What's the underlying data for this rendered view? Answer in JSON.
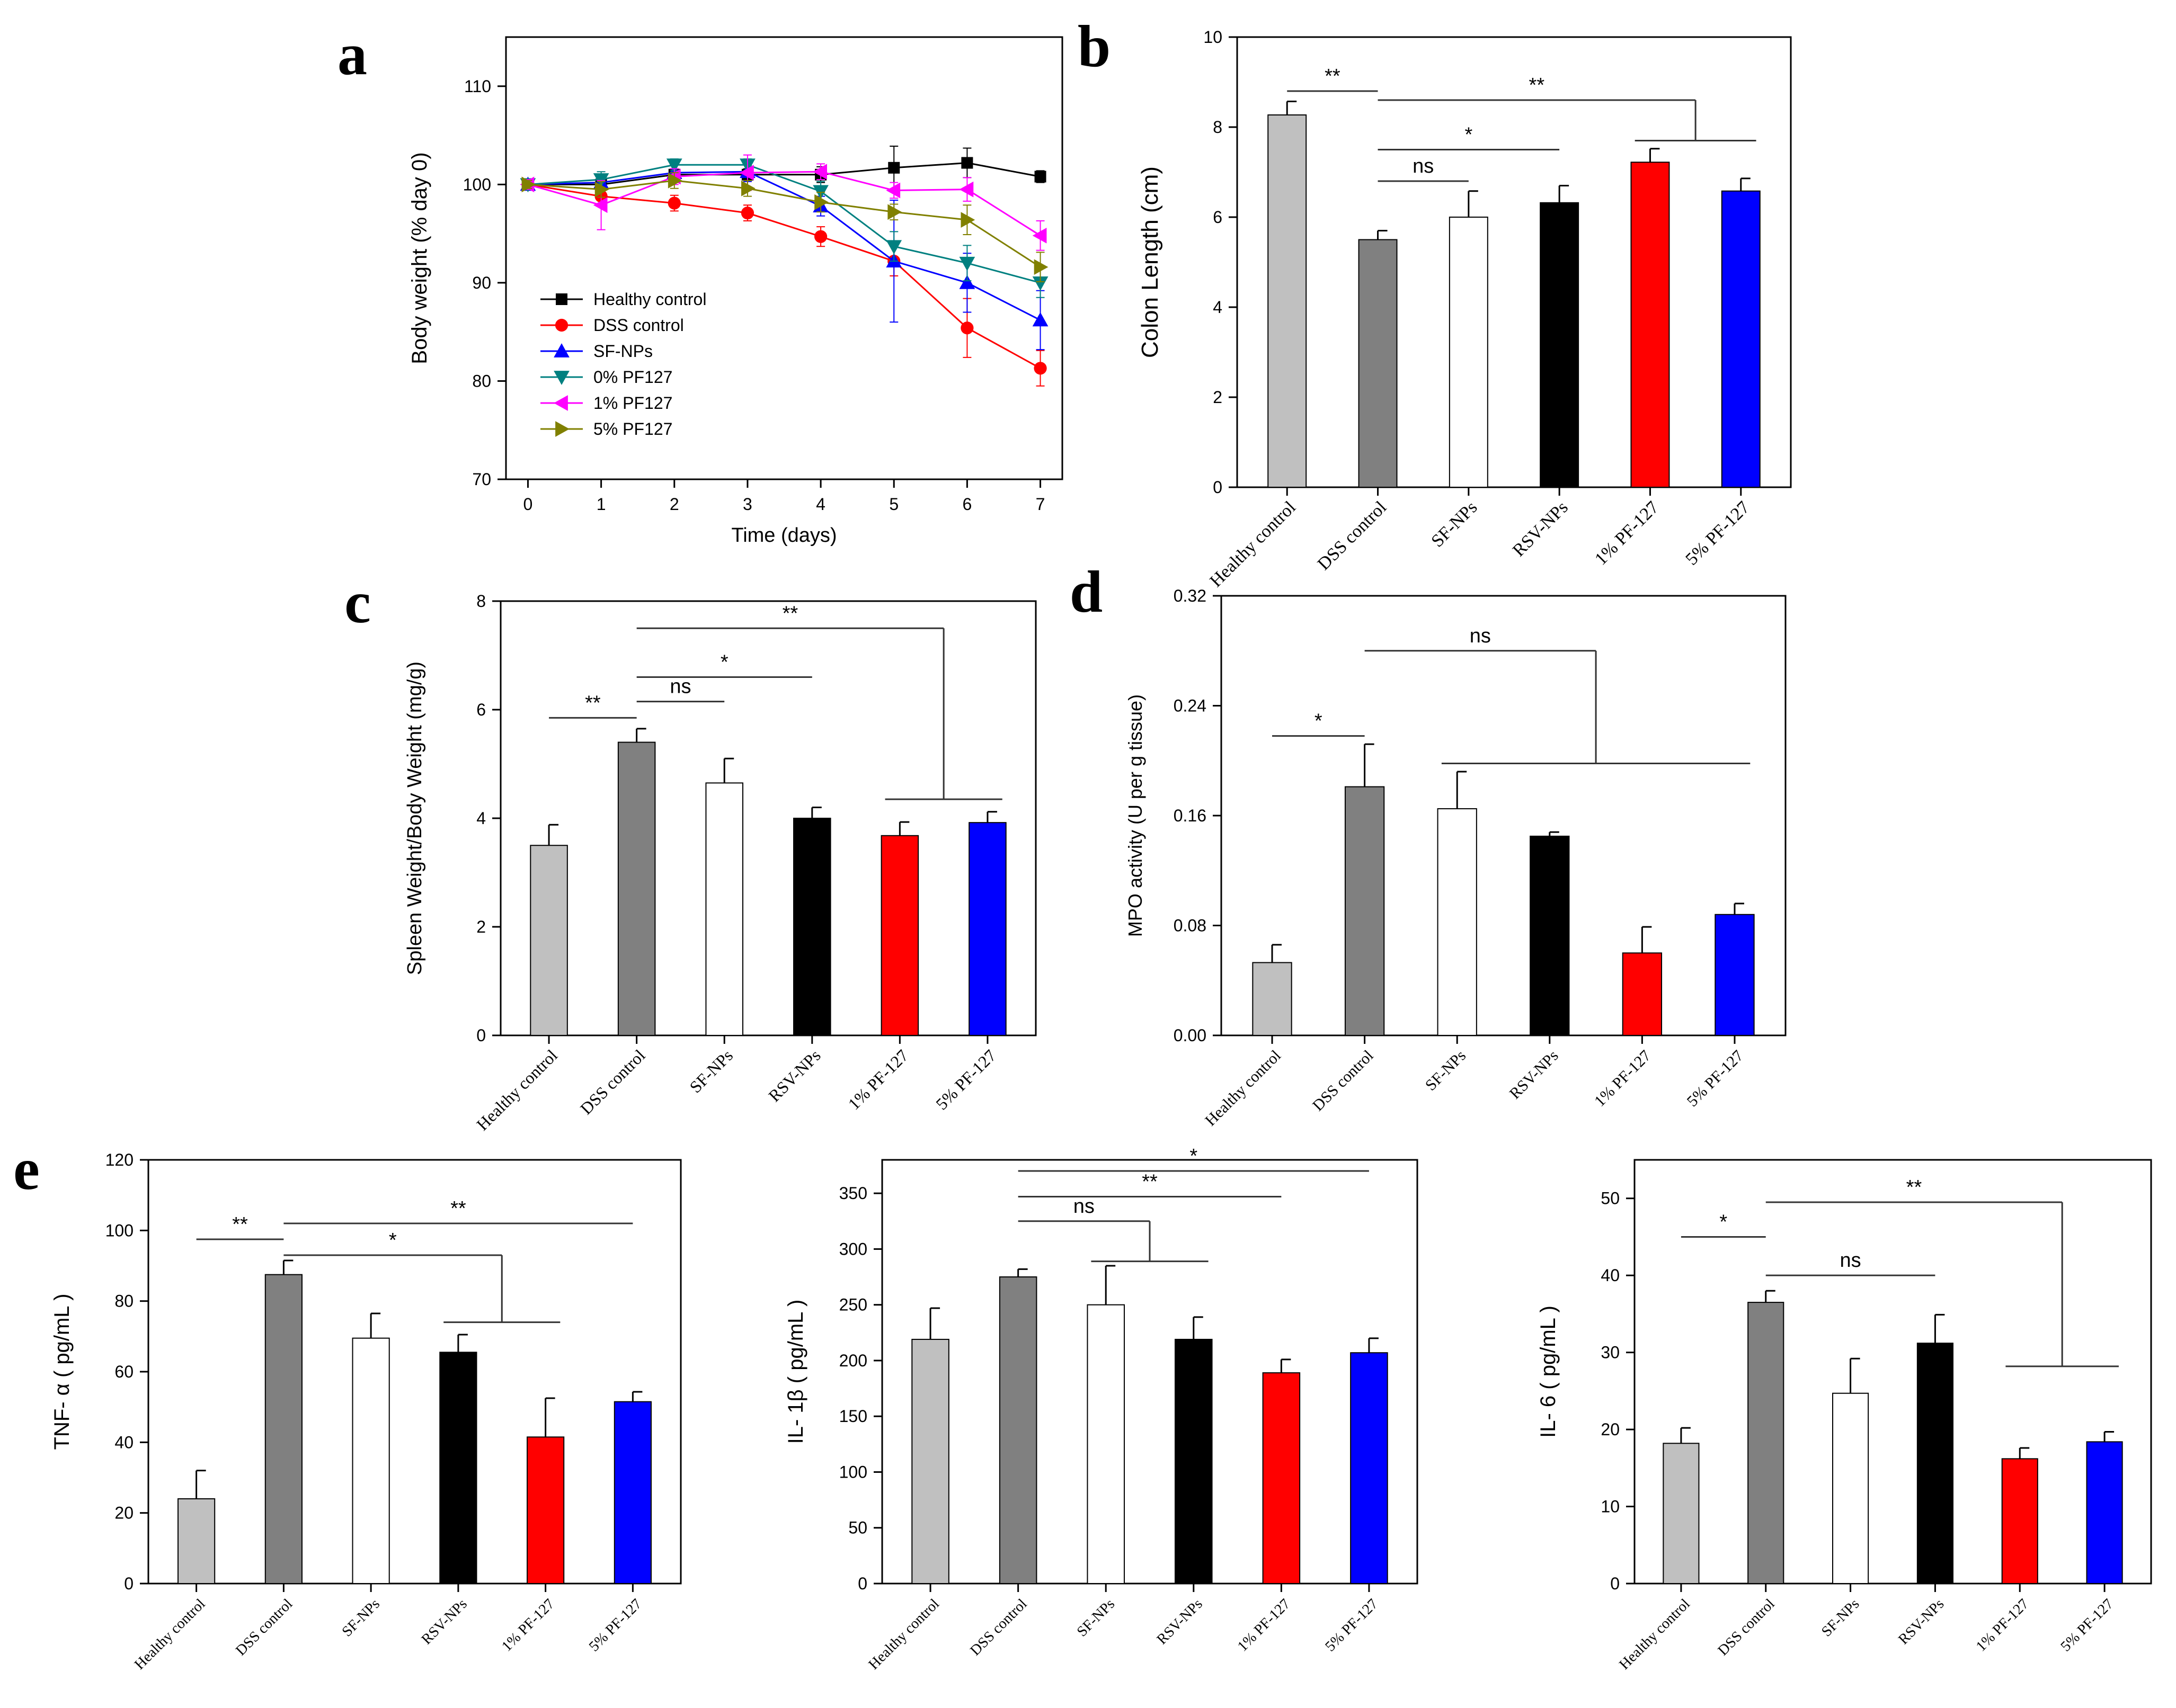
{
  "colors": {
    "healthy": "#c0c0c0",
    "dss": "#808080",
    "sfnp": "#ffffff",
    "rsvnp": "#000000",
    "pf1": "#ff0000",
    "pf5": "#0000ff",
    "line_healthy": "#000000",
    "line_dss": "#ff0000",
    "line_sfnp": "#0000ff",
    "line_pf0": "#008080",
    "line_pf1": "#ff00ff",
    "line_pf5": "#808000"
  },
  "chart_data": [
    {
      "id": "a",
      "type": "line",
      "panel_label": "a",
      "xlabel": "Time (days)",
      "ylabel": "Body weight (% day 0)",
      "x": [
        0,
        1,
        2,
        3,
        4,
        5,
        6,
        7
      ],
      "xticks": [
        "0",
        "1",
        "2",
        "3",
        "4",
        "5",
        "6",
        "7"
      ],
      "xlim": [
        -0.3,
        7.3
      ],
      "ylim": [
        70,
        115
      ],
      "yticks": [
        "70",
        "80",
        "90",
        "100",
        "110"
      ],
      "legend_position": "center-left",
      "series": [
        {
          "name": "Healthy control",
          "marker": "square",
          "color": "#000000",
          "values": [
            100,
            100,
            101,
            101,
            101,
            101.7,
            102.2,
            100.8
          ],
          "errors": [
            0.5,
            0.6,
            0.6,
            0.6,
            0.8,
            2.2,
            1.5,
            0.6
          ]
        },
        {
          "name": "DSS control",
          "marker": "circle",
          "color": "#ff0000",
          "values": [
            100,
            98.8,
            98.1,
            97.1,
            94.7,
            92.2,
            85.4,
            81.3
          ],
          "errors": [
            0.4,
            0.8,
            0.8,
            0.8,
            1.0,
            1.5,
            3.0,
            1.8
          ]
        },
        {
          "name": "SF-NPs",
          "marker": "triangle-up",
          "color": "#0000ff",
          "values": [
            100,
            100.2,
            101.2,
            101.3,
            97.8,
            92.2,
            90.0,
            86.2
          ],
          "errors": [
            0.5,
            0.8,
            0.8,
            1.0,
            1.0,
            6.2,
            3.0,
            3.0
          ]
        },
        {
          "name": "0% PF127",
          "marker": "triangle-down",
          "color": "#008080",
          "values": [
            100,
            100.5,
            102,
            102,
            99.3,
            93.7,
            92.0,
            90.0
          ],
          "errors": [
            0.5,
            0.8,
            0.6,
            0.6,
            1.0,
            1.5,
            1.8,
            1.5
          ]
        },
        {
          "name": "1% PF127",
          "marker": "triangle-left",
          "color": "#ff00ff",
          "values": [
            100,
            97.9,
            100.8,
            101.2,
            101.3,
            99.4,
            99.5,
            94.8
          ],
          "errors": [
            0.5,
            2.5,
            0.8,
            1.8,
            0.8,
            0.8,
            1.2,
            1.5
          ]
        },
        {
          "name": "5% PF127",
          "marker": "triangle-right",
          "color": "#808000",
          "values": [
            100,
            99.5,
            100.4,
            99.6,
            98.2,
            97.2,
            96.4,
            91.6
          ],
          "errors": [
            0.4,
            0.8,
            0.8,
            0.8,
            1.0,
            0.8,
            1.5,
            1.5
          ]
        }
      ]
    },
    {
      "id": "b",
      "type": "bar",
      "panel_label": "b",
      "ylabel": "Colon Length (cm)",
      "categories": [
        "Healthy control",
        "DSS control",
        "SF-NPs",
        "RSV-NPs",
        "1% PF-127",
        "5% PF-127"
      ],
      "values": [
        8.27,
        5.5,
        6.0,
        6.32,
        7.22,
        6.58
      ],
      "errors": [
        0.3,
        0.2,
        0.58,
        0.38,
        0.3,
        0.28
      ],
      "ylim": [
        0,
        10
      ],
      "yticks": [
        "0",
        "2",
        "4",
        "6",
        "8",
        "10"
      ],
      "significance": [
        {
          "text": "**",
          "type": "line",
          "from": 0,
          "to": 1,
          "y": 8.8
        },
        {
          "text": "**",
          "type": "bracket",
          "from": 1,
          "group": [
            4,
            5
          ],
          "y": 8.6,
          "group_y": 7.7
        },
        {
          "text": "*",
          "type": "line",
          "from": 1,
          "to": 3,
          "y": 7.5
        },
        {
          "text": "ns",
          "type": "line",
          "from": 1,
          "to": 2,
          "y": 6.8
        }
      ]
    },
    {
      "id": "c",
      "type": "bar",
      "panel_label": "c",
      "ylabel": "Spleen Weight/Body Weight (mg/g)",
      "categories": [
        "Healthy control",
        "DSS control",
        "SF-NPs",
        "RSV-NPs",
        "1% PF-127",
        "5% PF-127"
      ],
      "values": [
        3.5,
        5.4,
        4.65,
        4.0,
        3.68,
        3.92
      ],
      "errors": [
        0.38,
        0.25,
        0.45,
        0.2,
        0.25,
        0.2
      ],
      "ylim": [
        0,
        8
      ],
      "yticks": [
        "0",
        "2",
        "4",
        "6",
        "8"
      ],
      "significance": [
        {
          "text": "**",
          "type": "line",
          "from": 0,
          "to": 1,
          "y": 5.85
        },
        {
          "text": "ns",
          "type": "line",
          "from": 1,
          "to": 2,
          "y": 6.15
        },
        {
          "text": "*",
          "type": "line",
          "from": 1,
          "to": 3,
          "y": 6.6
        },
        {
          "text": "**",
          "type": "bracket",
          "from": 1,
          "group": [
            4,
            5
          ],
          "y": 7.5,
          "group_y": 4.35
        }
      ]
    },
    {
      "id": "d",
      "type": "bar",
      "panel_label": "d",
      "ylabel": "MPO activity (U per g tissue)",
      "categories": [
        "Healthy control",
        "DSS control",
        "SF-NPs",
        "RSV-NPs",
        "1% PF-127",
        "5% PF-127"
      ],
      "values": [
        0.053,
        0.181,
        0.165,
        0.145,
        0.06,
        0.088
      ],
      "errors": [
        0.013,
        0.031,
        0.027,
        0.003,
        0.019,
        0.008
      ],
      "ylim": [
        0,
        0.32
      ],
      "yticks": [
        "0.00",
        "0.08",
        "0.16",
        "0.24",
        "0.32"
      ],
      "significance": [
        {
          "text": "*",
          "type": "line",
          "from": 0,
          "to": 1,
          "y": 0.218
        },
        {
          "text": "ns",
          "type": "bracket",
          "from": 1,
          "group": [
            2,
            5
          ],
          "y": 0.28,
          "group_y": 0.198
        }
      ]
    },
    {
      "id": "e1",
      "type": "bar",
      "panel_label": "e",
      "ylabel": "TNF- α ( pg/mL )",
      "categories": [
        "Healthy control",
        "DSS control",
        "SF-NPs",
        "RSV-NPs",
        "1% PF-127",
        "5% PF-127"
      ],
      "values": [
        24,
        87.5,
        69.5,
        65.5,
        41.5,
        51.5
      ],
      "errors": [
        8,
        4,
        7,
        5,
        11,
        2.8
      ],
      "ylim": [
        0,
        120
      ],
      "yticks": [
        "0",
        "20",
        "40",
        "60",
        "80",
        "100",
        "120"
      ],
      "significance": [
        {
          "text": "**",
          "type": "line",
          "from": 0,
          "to": 1,
          "y": 97.5
        },
        {
          "text": "**",
          "type": "line",
          "from": 1,
          "to": 5,
          "y": 102
        },
        {
          "text": "*",
          "type": "bracket",
          "from": 1,
          "group": [
            3,
            4
          ],
          "y": 93,
          "group_y": 74
        }
      ]
    },
    {
      "id": "e2",
      "type": "bar",
      "ylabel": "IL- 1β ( pg/mL )",
      "categories": [
        "Healthy control",
        "DSS control",
        "SF-NPs",
        "RSV-NPs",
        "1% PF-127",
        "5% PF-127"
      ],
      "values": [
        219,
        275,
        250,
        219,
        189,
        207
      ],
      "errors": [
        28,
        7,
        35,
        20,
        12,
        13
      ],
      "ylim": [
        0,
        380
      ],
      "yticks": [
        "0",
        "50",
        "100",
        "150",
        "200",
        "250",
        "300",
        "350"
      ],
      "significance": [
        {
          "text": "*",
          "type": "line",
          "from": 1,
          "to": 5,
          "y": 370
        },
        {
          "text": "**",
          "type": "line",
          "from": 1,
          "to": 4,
          "y": 347
        },
        {
          "text": "ns",
          "type": "bracket",
          "from": 1,
          "group": [
            2,
            3
          ],
          "y": 325,
          "group_y": 289
        }
      ]
    },
    {
      "id": "e3",
      "type": "bar",
      "ylabel": "IL- 6 ( pg/mL )",
      "categories": [
        "Healthy control",
        "DSS control",
        "SF-NPs",
        "RSV-NPs",
        "1% PF-127",
        "5% PF-127"
      ],
      "values": [
        18.2,
        36.5,
        24.7,
        31.2,
        16.2,
        18.4
      ],
      "errors": [
        2.0,
        1.5,
        4.5,
        3.7,
        1.4,
        1.3
      ],
      "ylim": [
        0,
        55
      ],
      "yticks": [
        "0",
        "10",
        "20",
        "30",
        "40",
        "50"
      ],
      "significance": [
        {
          "text": "*",
          "type": "line",
          "from": 0,
          "to": 1,
          "y": 45
        },
        {
          "text": "ns",
          "type": "line",
          "from": 1,
          "to": 3,
          "y": 40
        },
        {
          "text": "**",
          "type": "bracket",
          "from": 1,
          "group": [
            4,
            5
          ],
          "y": 49.5,
          "group_y": 28.2
        }
      ]
    }
  ]
}
